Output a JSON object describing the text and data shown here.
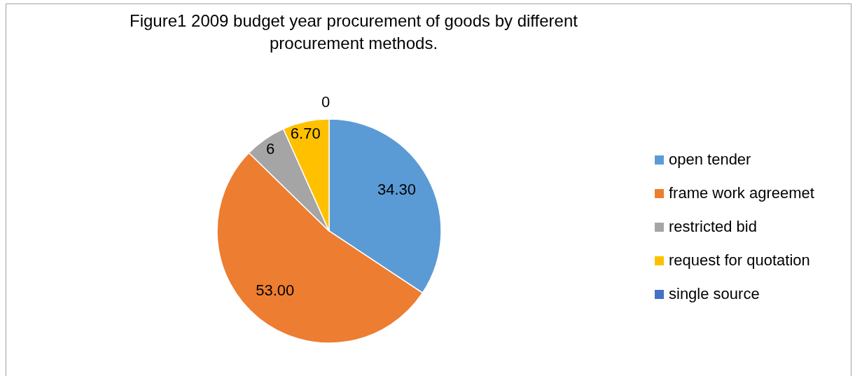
{
  "chart_data": {
    "type": "pie",
    "title": "Figure1 2009 budget year procurement of goods by different procurement methods.",
    "categories": [
      "open tender",
      "frame work agreemet",
      "restricted bid",
      "request for quotation",
      "single source"
    ],
    "values": [
      34.3,
      53.0,
      6,
      6.7,
      0
    ],
    "value_labels": [
      "34.30",
      "53.00",
      "6",
      "6.70",
      "0"
    ],
    "colors": [
      "#5b9bd5",
      "#ed7d31",
      "#a5a5a5",
      "#ffc000",
      "#4472c4"
    ],
    "legend": "right"
  }
}
